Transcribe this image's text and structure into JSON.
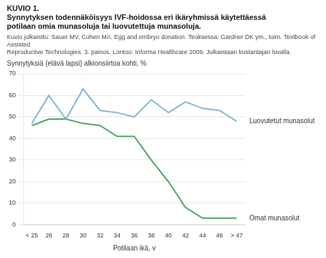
{
  "chart_data": {
    "type": "line",
    "title": [
      "KUVIO 1.",
      "Synnytyksen todennäköisyys IVF-hoidossa eri ikäryhmissä käytettäessä",
      "potilaan omia munasoluja tai luovutettuja munasoluja."
    ],
    "subtitle": [
      "Kuvio julkaisttu: Sauer MV, Cohen MA. Egg and embryo donation. Teoksessa: Gardner DK ym., toim. Textbook of Assisted",
      "Reproductive Technologies. 3. painos. Lontoo: Informa Healthcare 2009. Julkaistaan kustantajan luvalla."
    ],
    "xlabel": "Potilaan ikä, v",
    "ylabel": "Synnytyksiä (elävä lapsi) alkionsiirtoa kohti, %",
    "categories": [
      "< 25",
      "26",
      "28",
      "30",
      "32",
      "34",
      "36",
      "38",
      "40",
      "42",
      "44",
      "46",
      "> 47"
    ],
    "series": [
      {
        "name": "Luovutetut munasolut",
        "color": "#7ab3d4",
        "values": [
          47,
          60,
          49,
          63,
          53,
          52,
          50,
          58,
          52,
          57,
          54,
          53,
          48
        ]
      },
      {
        "name": "Omat munasolut",
        "color": "#4a9e5c",
        "values": [
          46,
          49,
          49,
          47,
          46,
          41,
          41,
          30,
          20,
          8,
          3,
          3,
          3
        ]
      }
    ],
    "ylim": [
      0,
      70
    ],
    "yticks": [
      0,
      10,
      20,
      30,
      40,
      50,
      60,
      70
    ],
    "grid": true
  }
}
